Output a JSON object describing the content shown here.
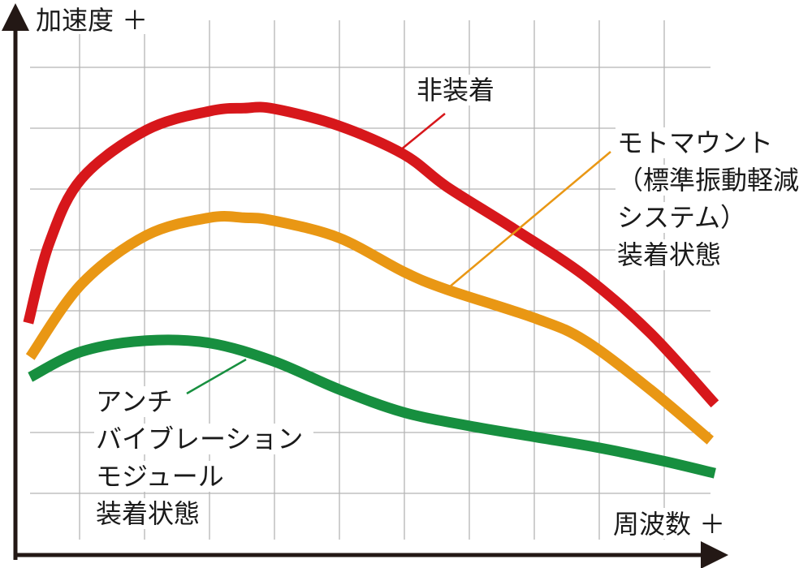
{
  "chart_data": {
    "type": "line",
    "title": "",
    "ylabel": "加速度 ＋",
    "xlabel": "周波数 ＋",
    "xlim": [
      0,
      11
    ],
    "ylim": [
      0,
      9
    ],
    "grid": true,
    "series": [
      {
        "name": "非装着",
        "label_lines": [
          "非装着"
        ],
        "color": "#d7171b",
        "points": [
          [
            0.21,
            3.8
          ],
          [
            0.53,
            5.1
          ],
          [
            1.03,
            6.17
          ],
          [
            2.03,
            6.97
          ],
          [
            3.0,
            7.28
          ],
          [
            3.53,
            7.33
          ],
          [
            3.99,
            7.32
          ],
          [
            4.99,
            7.04
          ],
          [
            5.99,
            6.57
          ],
          [
            6.65,
            6.04
          ],
          [
            7.65,
            5.37
          ],
          [
            8.78,
            4.57
          ],
          [
            9.78,
            3.64
          ],
          [
            10.78,
            2.47
          ]
        ]
      },
      {
        "name": "モトマウント（標準振動軽減システム）装着状態",
        "label_lines": [
          "モトマウント",
          "（標準振動軽減",
          "システム）",
          "装着状態"
        ],
        "color": "#e99714",
        "points": [
          [
            0.24,
            3.24
          ],
          [
            1.03,
            4.44
          ],
          [
            2.03,
            5.24
          ],
          [
            3.0,
            5.53
          ],
          [
            3.53,
            5.53
          ],
          [
            3.99,
            5.48
          ],
          [
            4.99,
            5.2
          ],
          [
            5.99,
            4.64
          ],
          [
            6.65,
            4.35
          ],
          [
            8.03,
            3.87
          ],
          [
            8.78,
            3.51
          ],
          [
            9.78,
            2.71
          ],
          [
            10.71,
            1.87
          ]
        ]
      },
      {
        "name": "アンチバイブレーションモジュール装着状態",
        "label_lines": [
          "アンチ",
          "バイブレーション",
          "モジュール",
          "装着状態"
        ],
        "color": "#178f3f",
        "points": [
          [
            0.24,
            2.91
          ],
          [
            1.03,
            3.33
          ],
          [
            2.03,
            3.51
          ],
          [
            3.0,
            3.47
          ],
          [
            3.99,
            3.17
          ],
          [
            4.99,
            2.71
          ],
          [
            5.99,
            2.33
          ],
          [
            6.99,
            2.11
          ],
          [
            7.99,
            1.93
          ],
          [
            8.99,
            1.75
          ],
          [
            9.99,
            1.53
          ],
          [
            10.78,
            1.33
          ]
        ]
      }
    ]
  }
}
